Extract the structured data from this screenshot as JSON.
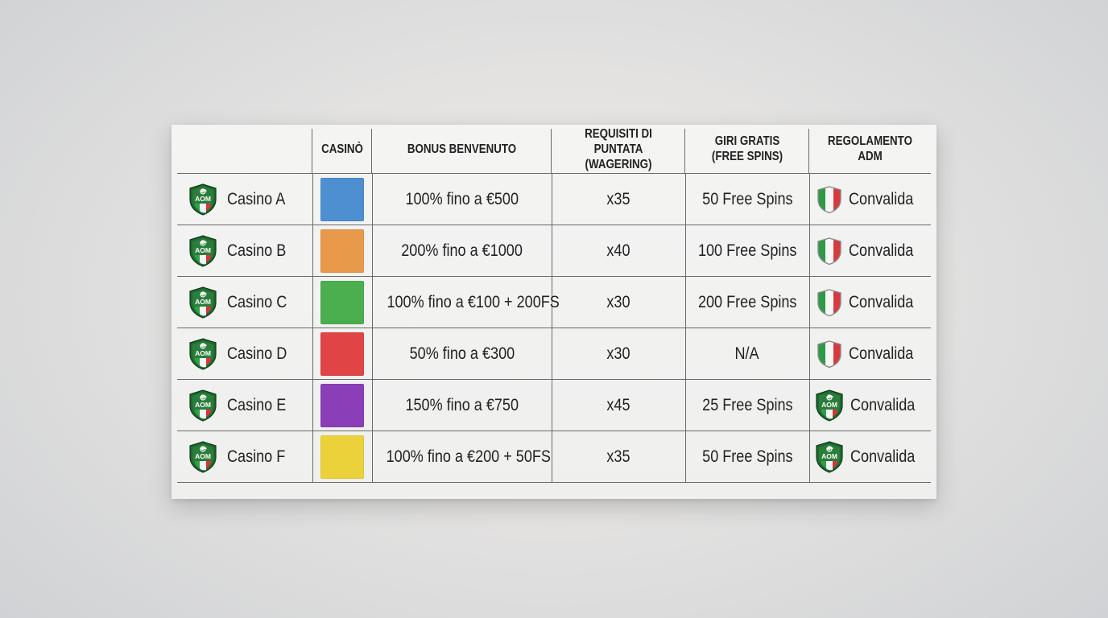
{
  "headers": {
    "name": "",
    "casino": "Casinò",
    "bonus": "Bonus Benvenuto",
    "wagering_line1": "Requisiti di Puntata",
    "wagering_line2": "(Wagering)",
    "spins_line1": "Giri Gratis",
    "spins_line2": "(Free Spins)",
    "reg_line1": "Regolamento",
    "reg_line2": "ADM"
  },
  "badge_text": "AOM",
  "rows": [
    {
      "name": "Casino A",
      "color": "#4d8fd1",
      "bonus": "100% fino a €500",
      "wagering": "x35",
      "spins": "50 Free Spins",
      "reg_icon": "italy-flag-shield-icon",
      "reg": "Convalida"
    },
    {
      "name": "Casino B",
      "color": "#e9994a",
      "bonus": "200% fino a €1000",
      "wagering": "x40",
      "spins": "100 Free Spins",
      "reg_icon": "italy-flag-shield-icon",
      "reg": "Convalida"
    },
    {
      "name": "Casino C",
      "color": "#4caf4f",
      "bonus": "100% fino a €100 + 200FS",
      "wagering": "x30",
      "spins": "200 Free Spins",
      "reg_icon": "italy-flag-shield-icon",
      "reg": "Convalida"
    },
    {
      "name": "Casino D",
      "color": "#e04444",
      "bonus": "50% fino a €300",
      "wagering": "x30",
      "spins": "N/A",
      "reg_icon": "italy-flag-shield-icon",
      "reg": "Convalida"
    },
    {
      "name": "Casino E",
      "color": "#8a3fb8",
      "bonus": "150% fino a €750",
      "wagering": "x45",
      "spins": "25 Free Spins",
      "reg_icon": "adm-shield-icon",
      "reg": "Convalida"
    },
    {
      "name": "Casino F",
      "color": "#ecd23a",
      "bonus": "100% fino a €200 + 50FS",
      "wagering": "x35",
      "spins": "50 Free Spins",
      "reg_icon": "adm-shield-icon",
      "reg": "Convalida"
    }
  ]
}
